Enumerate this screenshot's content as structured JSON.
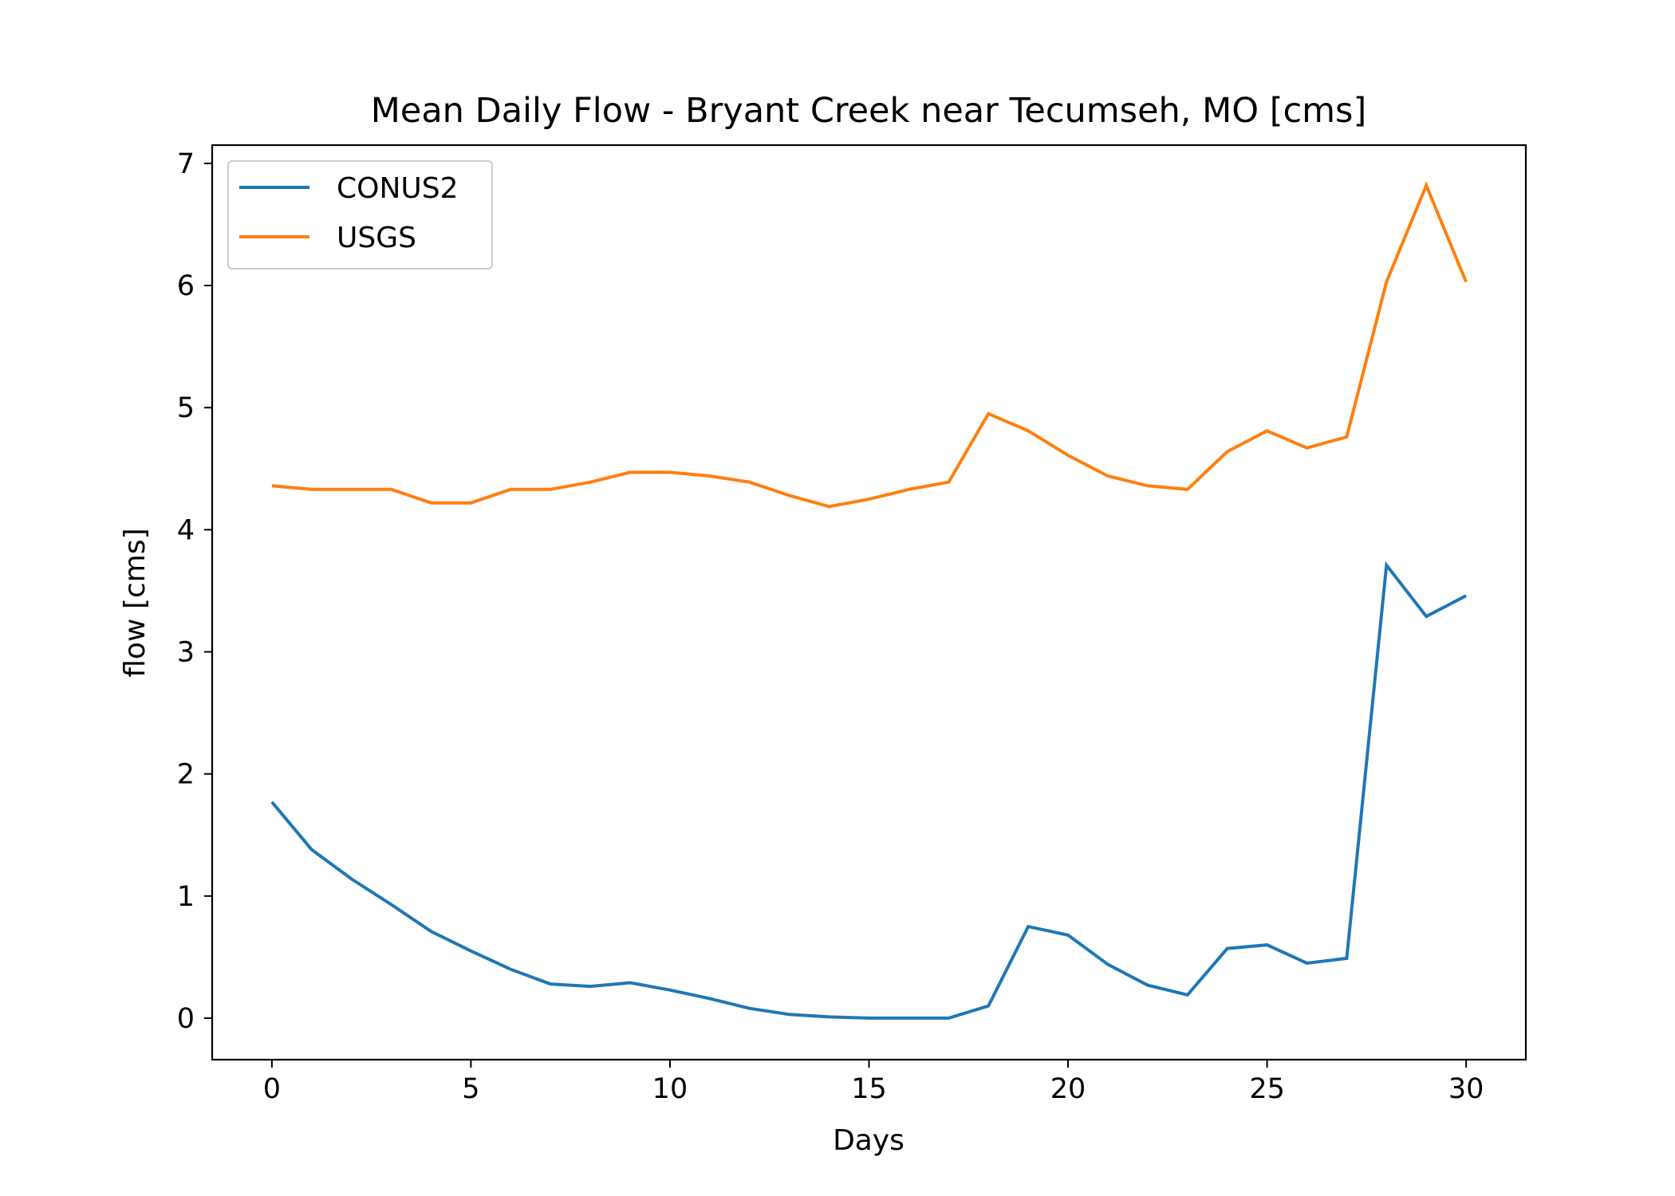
{
  "chart_data": {
    "type": "line",
    "title": "Mean Daily Flow - Bryant Creek near Tecumseh, MO [cms]",
    "xlabel": "Days",
    "ylabel": "flow [cms]",
    "xlim": [
      -1.5,
      31.5
    ],
    "ylim": [
      -0.34,
      7.15
    ],
    "xticks": [
      0,
      5,
      10,
      15,
      20,
      25,
      30
    ],
    "yticks": [
      0,
      1,
      2,
      3,
      4,
      5,
      6,
      7
    ],
    "grid": false,
    "legend": "upper-left",
    "x": [
      0,
      1,
      2,
      3,
      4,
      5,
      6,
      7,
      8,
      9,
      10,
      11,
      12,
      13,
      14,
      15,
      16,
      17,
      18,
      19,
      20,
      21,
      22,
      23,
      24,
      25,
      26,
      27,
      28,
      29,
      30
    ],
    "series": [
      {
        "name": "CONUS2",
        "color": "#1f77b4",
        "values": [
          1.77,
          1.38,
          1.14,
          0.93,
          0.71,
          0.55,
          0.4,
          0.28,
          0.26,
          0.29,
          0.23,
          0.16,
          0.08,
          0.03,
          0.01,
          0.0,
          0.0,
          0.0,
          0.1,
          0.75,
          0.68,
          0.44,
          0.27,
          0.19,
          0.57,
          0.6,
          0.45,
          0.49,
          3.71,
          3.29,
          3.46
        ]
      },
      {
        "name": "USGS",
        "color": "#ff7f0e",
        "values": [
          4.36,
          4.33,
          4.33,
          4.33,
          4.22,
          4.22,
          4.33,
          4.33,
          4.39,
          4.47,
          4.47,
          4.44,
          4.39,
          4.28,
          4.19,
          4.25,
          4.33,
          4.39,
          4.95,
          4.81,
          4.61,
          4.44,
          4.36,
          4.33,
          4.64,
          4.81,
          4.67,
          4.76,
          6.03,
          6.82,
          6.03
        ]
      }
    ]
  }
}
